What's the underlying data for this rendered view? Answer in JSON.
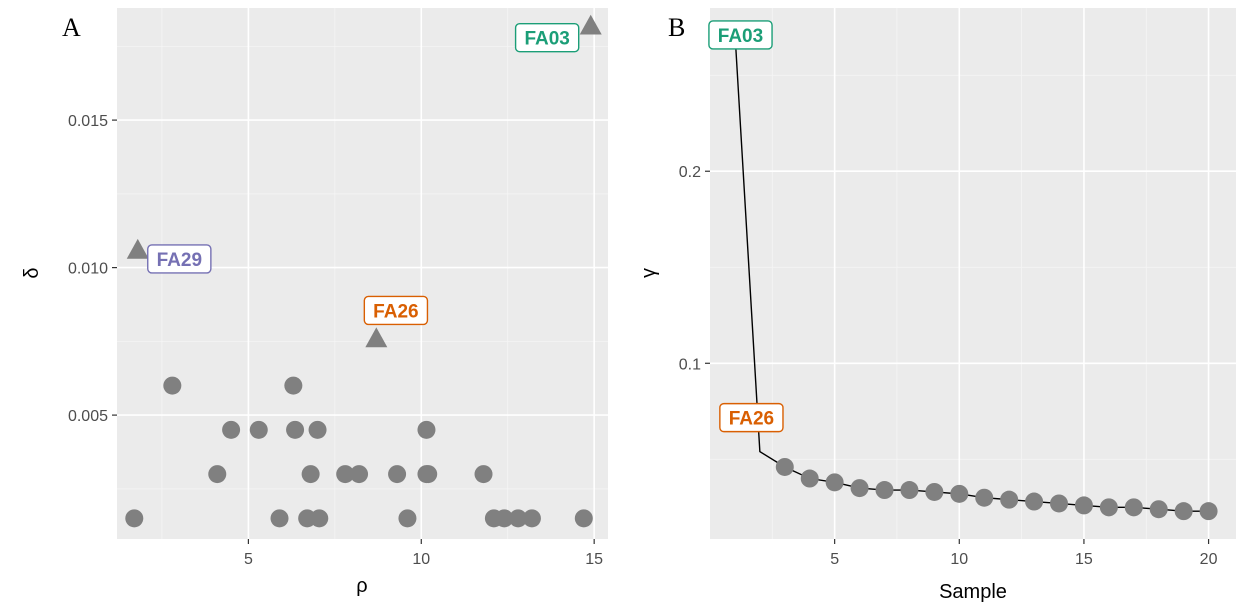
{
  "chart_data": [
    {
      "panel": "A",
      "type": "scatter",
      "xlabel": "ρ",
      "ylabel": "δ",
      "xlim": [
        1.2,
        15.4
      ],
      "ylim": [
        0.0008,
        0.0188
      ],
      "x_ticks": [
        5,
        10,
        15
      ],
      "x_tick_labels": [
        "5",
        "10",
        "15"
      ],
      "y_ticks": [
        0.005,
        0.01,
        0.015
      ],
      "y_tick_labels": [
        "0.005",
        "0.010",
        "0.015"
      ],
      "grid": true,
      "points": [
        {
          "x": 1.7,
          "y": 0.0015
        },
        {
          "x": 2.8,
          "y": 0.006
        },
        {
          "x": 4.1,
          "y": 0.003
        },
        {
          "x": 4.5,
          "y": 0.0045
        },
        {
          "x": 5.3,
          "y": 0.0045
        },
        {
          "x": 5.9,
          "y": 0.0015
        },
        {
          "x": 6.3,
          "y": 0.006
        },
        {
          "x": 6.35,
          "y": 0.0045
        },
        {
          "x": 6.7,
          "y": 0.0015
        },
        {
          "x": 6.8,
          "y": 0.003
        },
        {
          "x": 7.0,
          "y": 0.0045
        },
        {
          "x": 7.05,
          "y": 0.0015
        },
        {
          "x": 7.8,
          "y": 0.003
        },
        {
          "x": 8.2,
          "y": 0.003
        },
        {
          "x": 9.3,
          "y": 0.003
        },
        {
          "x": 9.6,
          "y": 0.0015
        },
        {
          "x": 10.15,
          "y": 0.0045
        },
        {
          "x": 10.15,
          "y": 0.003
        },
        {
          "x": 10.2,
          "y": 0.003
        },
        {
          "x": 11.8,
          "y": 0.003
        },
        {
          "x": 12.1,
          "y": 0.0015
        },
        {
          "x": 12.4,
          "y": 0.0015
        },
        {
          "x": 12.8,
          "y": 0.0015
        },
        {
          "x": 13.2,
          "y": 0.0015
        },
        {
          "x": 14.7,
          "y": 0.0015
        }
      ],
      "highlighted": [
        {
          "label": "FA03",
          "x": 14.9,
          "y": 0.0182,
          "color": "#1b9e77"
        },
        {
          "label": "FA29",
          "x": 1.8,
          "y": 0.0106,
          "color": "#7570b3"
        },
        {
          "label": "FA26",
          "x": 8.7,
          "y": 0.0076,
          "color": "#d95f02"
        }
      ],
      "point_color": "#808080",
      "panel_bg": "#ebebeb"
    },
    {
      "panel": "B",
      "type": "line",
      "xlabel": "Sample",
      "ylabel": "γ",
      "xlim": [
        0.0,
        21.1
      ],
      "ylim": [
        0.0085,
        0.285
      ],
      "x_ticks": [
        5,
        10,
        15,
        20
      ],
      "x_tick_labels": [
        "5",
        "10",
        "15",
        "20"
      ],
      "y_ticks": [
        0.1,
        0.2
      ],
      "y_tick_labels": [
        "0.1",
        "0.2"
      ],
      "grid": true,
      "x": [
        1,
        2,
        3,
        4,
        5,
        6,
        7,
        8,
        9,
        10,
        11,
        12,
        13,
        14,
        15,
        16,
        17,
        18,
        19,
        20
      ],
      "values": [
        0.272,
        0.054,
        0.046,
        0.04,
        0.038,
        0.035,
        0.034,
        0.034,
        0.033,
        0.032,
        0.03,
        0.029,
        0.028,
        0.027,
        0.026,
        0.025,
        0.025,
        0.024,
        0.023,
        0.023
      ],
      "highlighted": [
        {
          "label": "FA03",
          "index": 0,
          "color": "#1b9e77"
        },
        {
          "label": "FA26",
          "index": 1,
          "color": "#d95f02"
        }
      ],
      "point_color": "#808080",
      "panel_bg": "#ebebeb"
    }
  ]
}
